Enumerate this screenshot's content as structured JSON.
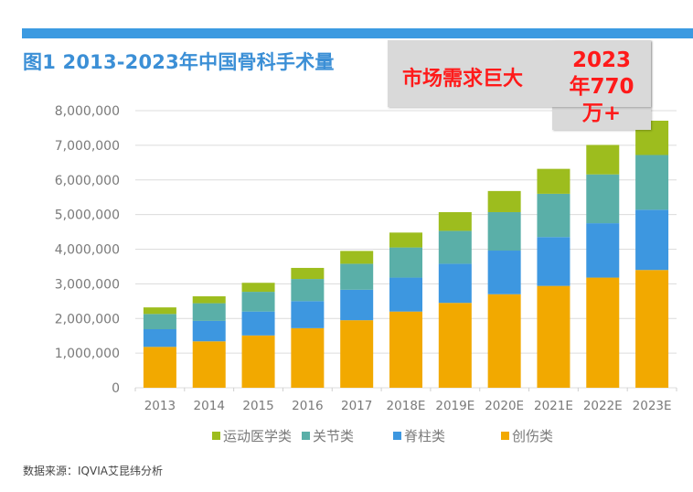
{
  "figure": {
    "title": "图1  2013-2023年中国骨科手术量",
    "source": "数据来源：IQVIA艾昆纬分析"
  },
  "callout": {
    "left_text": "市场需求巨大",
    "right_lines": [
      "2023",
      "年770",
      "万+"
    ]
  },
  "colors": {
    "stripe": "#3b9ae1",
    "title": "#3b8fd6",
    "callout_text": "#ff1a1a",
    "callout_bg": "#d9d9d9"
  },
  "chart_data": {
    "type": "bar",
    "stacked": true,
    "title": "2013-2023年中国骨科手术量",
    "xlabel": "",
    "ylabel": "",
    "ylim": [
      0,
      8000000
    ],
    "yticks": [
      0,
      1000000,
      2000000,
      3000000,
      4000000,
      5000000,
      6000000,
      7000000,
      8000000
    ],
    "ytick_labels": [
      "0",
      "1,000,000",
      "2,000,000",
      "3,000,000",
      "4,000,000",
      "5,000,000",
      "6,000,000",
      "7,000,000",
      "8,000,000"
    ],
    "grid": true,
    "legend_position": "bottom",
    "categories": [
      "2013",
      "2014",
      "2015",
      "2016",
      "2017",
      "2018E",
      "2019E",
      "2020E",
      "2021E",
      "2022E",
      "2023E"
    ],
    "series": [
      {
        "name": "创伤类",
        "color": "#f2a900",
        "values": [
          1180000,
          1340000,
          1510000,
          1720000,
          1950000,
          2200000,
          2450000,
          2700000,
          2940000,
          3180000,
          3400000
        ]
      },
      {
        "name": "脊柱类",
        "color": "#3d97e0",
        "values": [
          510000,
          590000,
          690000,
          780000,
          880000,
          980000,
          1130000,
          1260000,
          1410000,
          1570000,
          1740000
        ]
      },
      {
        "name": "关节类",
        "color": "#5aafa8",
        "values": [
          440000,
          510000,
          570000,
          640000,
          750000,
          870000,
          950000,
          1110000,
          1250000,
          1410000,
          1580000
        ]
      },
      {
        "name": "运动医学类",
        "color": "#9dbd1e",
        "values": [
          190000,
          200000,
          260000,
          320000,
          370000,
          430000,
          540000,
          610000,
          720000,
          850000,
          990000
        ]
      }
    ],
    "legend_order": [
      "运动医学类",
      "关节类",
      "脊柱类",
      "创伤类"
    ]
  }
}
